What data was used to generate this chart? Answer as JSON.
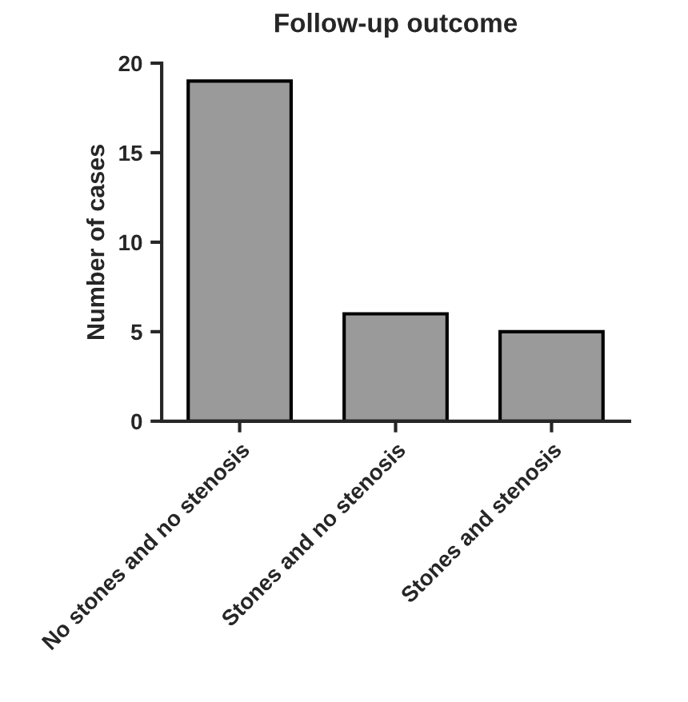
{
  "chart_data": {
    "type": "bar",
    "title": "Follow-up outcome",
    "ylabel": "Number of cases",
    "categories": [
      "No stones and no stenosis",
      "Stones and no stenosis",
      "Stones and stenosis"
    ],
    "values": [
      19,
      6,
      5
    ],
    "color": "#9a9a9a",
    "ylim": [
      0,
      20
    ],
    "yticks": [
      0,
      5,
      10,
      15,
      20
    ],
    "grid": false,
    "legend": false
  }
}
